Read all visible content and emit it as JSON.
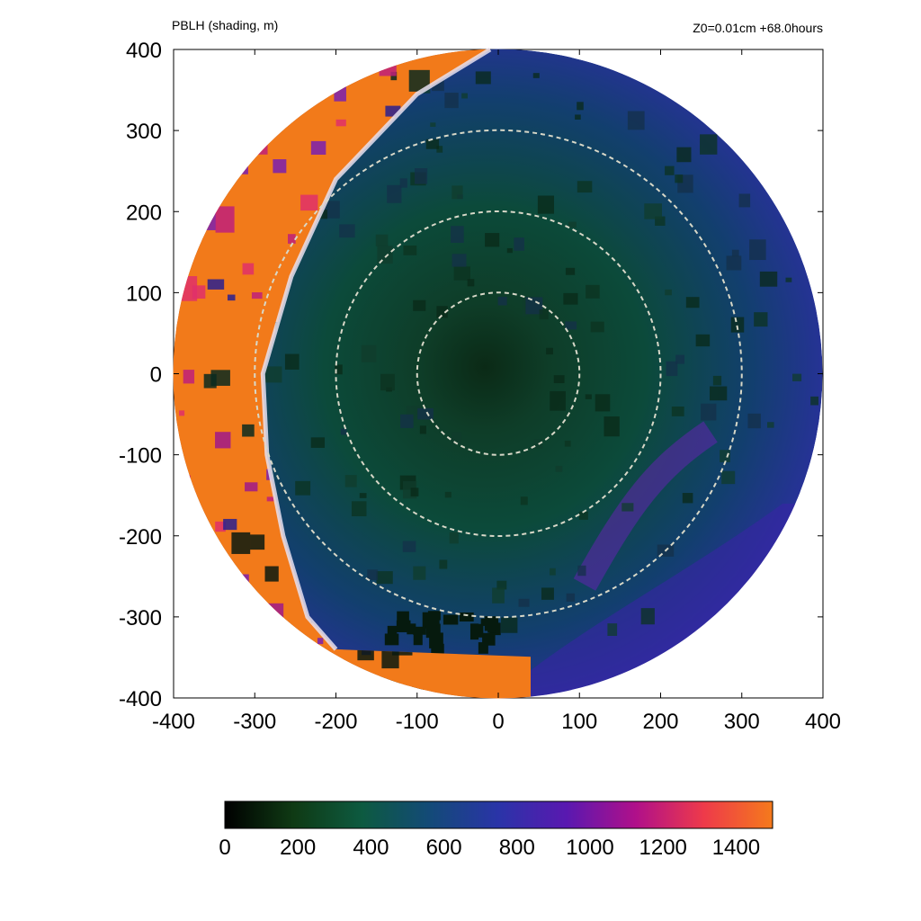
{
  "chart_data": {
    "type": "heatmap",
    "title": "PBLH (shading, m)",
    "annotation": "Z0=0.01cm  +68.0hours",
    "xlabel": "",
    "ylabel": "",
    "xlim": [
      -400,
      400
    ],
    "ylim": [
      -400,
      400
    ],
    "x_ticks": [
      "-400",
      "-300",
      "-200",
      "-100",
      "0",
      "100",
      "200",
      "300",
      "400"
    ],
    "y_ticks": [
      "400",
      "300",
      "200",
      "100",
      "0",
      "-100",
      "-200",
      "-300",
      "-400"
    ],
    "domain_radius": 400,
    "range_rings": [
      100,
      200,
      300
    ],
    "front_curve": [
      [
        -10,
        400
      ],
      [
        -100,
        345
      ],
      [
        -200,
        240
      ],
      [
        -255,
        120
      ],
      [
        -290,
        0
      ],
      [
        -285,
        -100
      ],
      [
        -265,
        -200
      ],
      [
        -235,
        -300
      ],
      [
        -200,
        -340
      ]
    ],
    "field_description_regions": [
      {
        "region": "core",
        "center": [
          -20,
          5
        ],
        "approx_value": 300
      },
      {
        "region": "inner domain",
        "approx_value": 550
      },
      {
        "region": "outer east band",
        "approx_value": 900
      },
      {
        "region": "southeast spiral band",
        "approx_value": 1000
      },
      {
        "region": "west of front",
        "approx_value": 1400
      }
    ],
    "colorbar": {
      "min": 0,
      "max": 1500,
      "ticks": [
        "0",
        "200",
        "400",
        "600",
        "800",
        "1000",
        "1200",
        "1400"
      ],
      "colors": [
        "#000000",
        "#0f3a14",
        "#0d5a40",
        "#134a78",
        "#2a34a8",
        "#5a18b0",
        "#b0108a",
        "#ee3a4a",
        "#f57a1c"
      ]
    }
  }
}
